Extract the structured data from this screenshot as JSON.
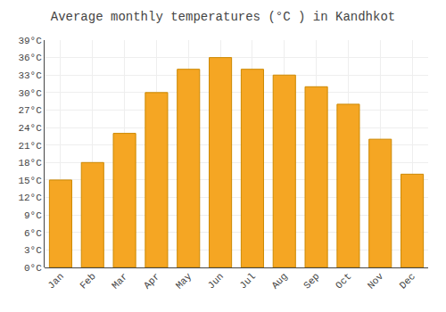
{
  "chart_data": {
    "type": "bar",
    "title": "Average monthly temperatures (°C ) in Kandhkot",
    "categories": [
      "Jan",
      "Feb",
      "Mar",
      "Apr",
      "May",
      "Jun",
      "Jul",
      "Aug",
      "Sep",
      "Oct",
      "Nov",
      "Dec"
    ],
    "values": [
      15,
      18,
      23,
      30,
      34,
      36,
      34,
      33,
      31,
      28,
      22,
      16
    ],
    "color": "#F5A623",
    "ylim": [
      0,
      39
    ],
    "yticks": [
      {
        "value": 0,
        "label": "0°C"
      },
      {
        "value": 3,
        "label": "3°C"
      },
      {
        "value": 6,
        "label": "6°C"
      },
      {
        "value": 9,
        "label": "9°C"
      },
      {
        "value": 12,
        "label": "12°C"
      },
      {
        "value": 15,
        "label": "15°C"
      },
      {
        "value": 18,
        "label": "18°C"
      },
      {
        "value": 21,
        "label": "21°C"
      },
      {
        "value": 24,
        "label": "24°C"
      },
      {
        "value": 27,
        "label": "27°C"
      },
      {
        "value": 30,
        "label": "30°C"
      },
      {
        "value": 33,
        "label": "33°C"
      },
      {
        "value": 36,
        "label": "36°C"
      },
      {
        "value": 39,
        "label": "39°C"
      }
    ],
    "grid": true
  }
}
